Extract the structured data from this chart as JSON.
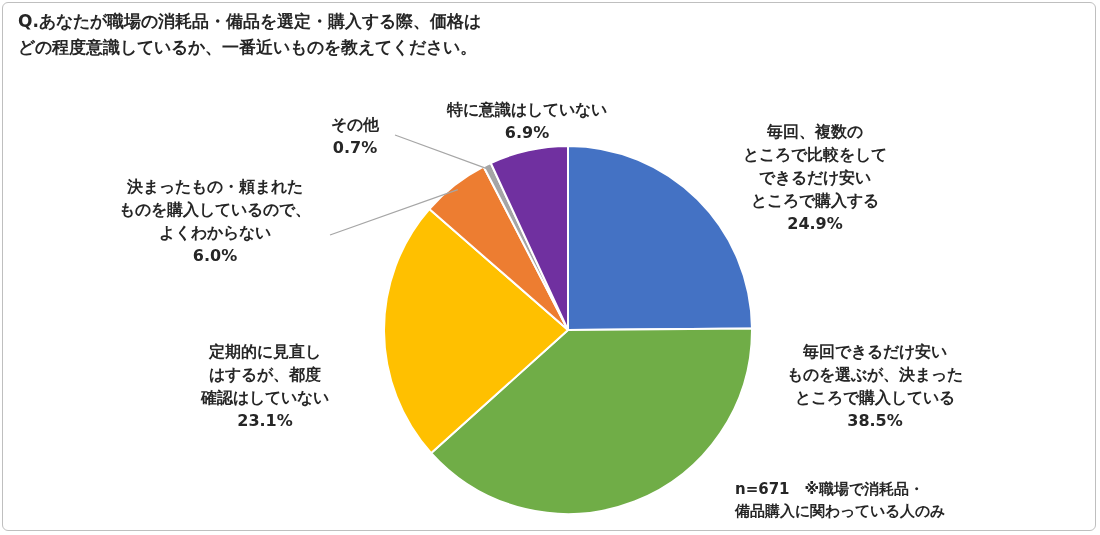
{
  "chart_data": {
    "type": "pie",
    "title": "Q.あなたが職場の消耗品・備品を選定・購入する際、価格はどの程度意識しているか、一番近いものを教えてください。",
    "categories": [
      "毎回、複数のところで比較をしてできるだけ安いところで購入する",
      "毎回できるだけ安いものを選ぶが、決まったところで購入している",
      "定期的に見直しはするが、都度確認はしていない",
      "決まったもの・頼まれたものを購入しているので、よくわからない",
      "その他",
      "特に意識はしていない"
    ],
    "values": [
      24.9,
      38.5,
      23.1,
      6.0,
      0.7,
      6.9
    ],
    "value_labels": [
      "24.9%",
      "38.5%",
      "23.1%",
      "6.0%",
      "0.7%",
      "6.9%"
    ],
    "colors": [
      "#4472c4",
      "#70ad47",
      "#ffc000",
      "#ed7d31",
      "#a5a5a5",
      "#7030a0"
    ],
    "annotations": [
      "n=671　※職場で消耗品・備品購入に関わっている人のみ"
    ],
    "legend": false
  }
}
